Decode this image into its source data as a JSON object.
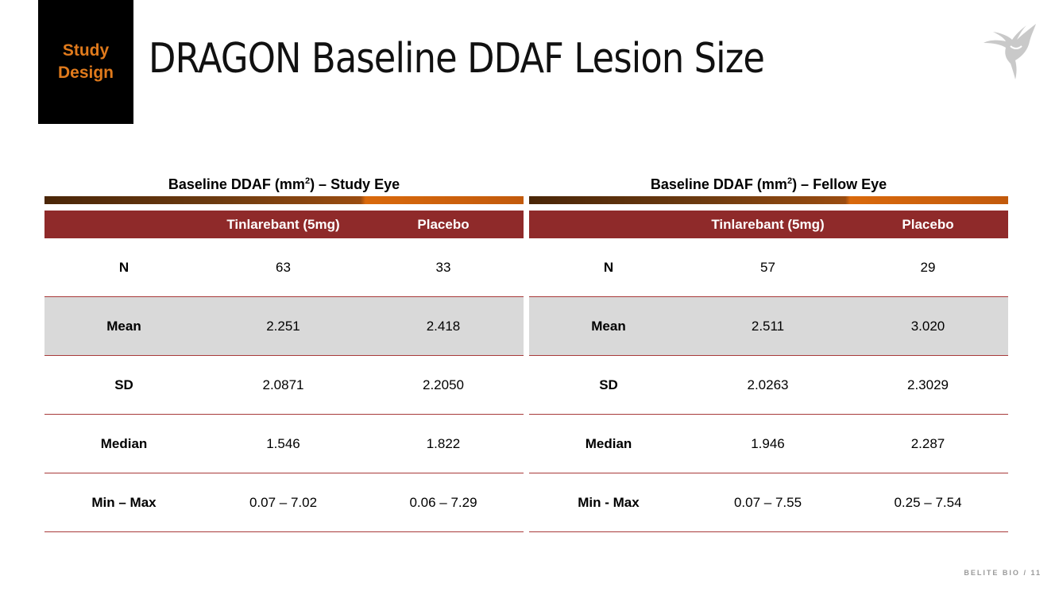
{
  "section_tag": {
    "line1": "Study",
    "line2": "Design"
  },
  "title": "DRAGON Baseline DDAF Lesion Size",
  "footer": {
    "brand": "BELITE BIO",
    "separator": "/",
    "page": "11"
  },
  "colors": {
    "header": "#8f2a2a",
    "tag_text": "#e07a1c",
    "shaded_row": "#d9d9d9"
  },
  "icons": {
    "logo": "hummingbird-logo-icon"
  },
  "tables": [
    {
      "title_pre": "Baseline DDAF (mm",
      "title_sup": "2",
      "title_post": ") – Study Eye",
      "columns": [
        "",
        "Tinlarebant (5mg)",
        "Placebo"
      ],
      "rows": [
        {
          "label": "N",
          "values": [
            "63",
            "33"
          ]
        },
        {
          "label": "Mean",
          "values": [
            "2.251",
            "2.418"
          ]
        },
        {
          "label": "SD",
          "values": [
            "2.0871",
            "2.2050"
          ]
        },
        {
          "label": "Median",
          "values": [
            "1.546",
            "1.822"
          ]
        },
        {
          "label": "Min – Max",
          "values": [
            "0.07 – 7.02",
            "0.06 – 7.29"
          ]
        }
      ]
    },
    {
      "title_pre": "Baseline DDAF (mm",
      "title_sup": "2",
      "title_post": ") – Fellow Eye",
      "columns": [
        "",
        "Tinlarebant (5mg)",
        "Placebo"
      ],
      "rows": [
        {
          "label": "N",
          "values": [
            "57",
            "29"
          ]
        },
        {
          "label": "Mean",
          "values": [
            "2.511",
            "3.020"
          ]
        },
        {
          "label": "SD",
          "values": [
            "2.0263",
            "2.3029"
          ]
        },
        {
          "label": "Median",
          "values": [
            "1.946",
            "2.287"
          ]
        },
        {
          "label": "Min - Max",
          "values": [
            "0.07 – 7.55",
            "0.25 – 7.54"
          ]
        }
      ]
    }
  ]
}
